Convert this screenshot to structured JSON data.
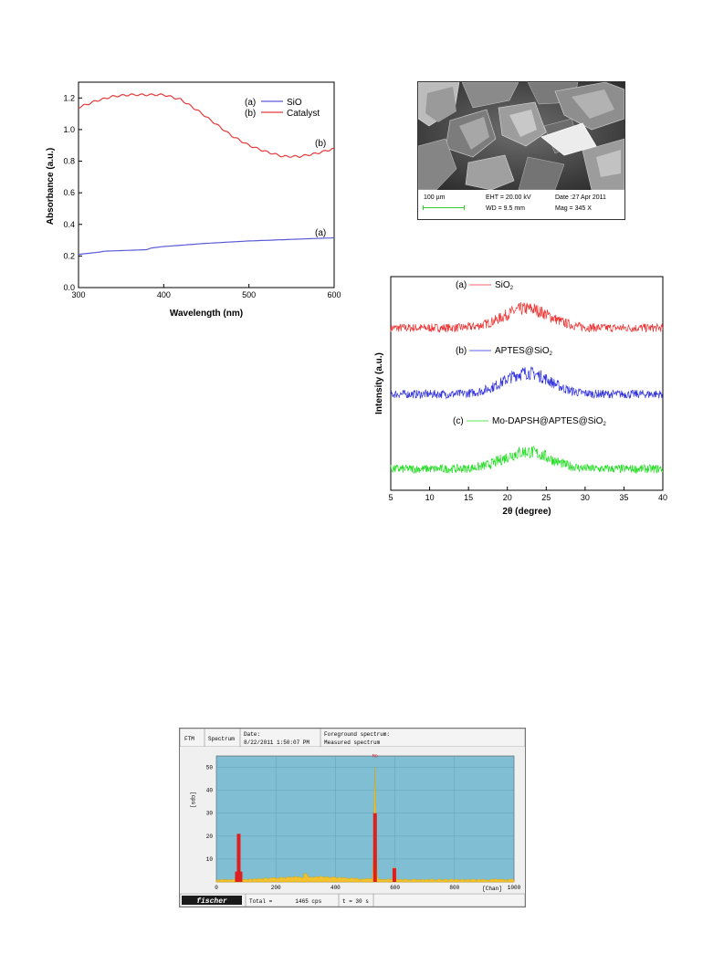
{
  "uv_chart": {
    "type": "line",
    "xlabel": "Wavelength (nm)",
    "ylabel": "Absorbance (a.u.)",
    "xlim": [
      300,
      600
    ],
    "ylim": [
      0,
      1.3
    ],
    "xticks": [
      "300",
      "400",
      "500",
      "600"
    ],
    "yticks": [
      "0.0",
      "0.2",
      "0.4",
      "0.6",
      "0.8",
      "1.0",
      "1.2"
    ],
    "legend_position": "top-right",
    "series": [
      {
        "legend_tag": "(a)",
        "name": "SiO",
        "curve_tag": "(a)",
        "color": "#5a5ad6",
        "x": [
          300,
          325,
          330,
          380,
          385,
          400,
          450,
          500,
          550,
          600
        ],
        "y": [
          0.21,
          0.225,
          0.23,
          0.24,
          0.25,
          0.26,
          0.28,
          0.295,
          0.305,
          0.315
        ]
      },
      {
        "legend_tag": "(b)",
        "name": "Catalyst",
        "curve_tag": "(b)",
        "color": "#e33b3b",
        "x": [
          300,
          320,
          340,
          360,
          380,
          400,
          420,
          440,
          460,
          480,
          500,
          520,
          540,
          560,
          580,
          600
        ],
        "y": [
          1.14,
          1.18,
          1.21,
          1.22,
          1.22,
          1.22,
          1.19,
          1.12,
          1.04,
          0.96,
          0.9,
          0.86,
          0.83,
          0.83,
          0.85,
          0.88
        ]
      }
    ]
  },
  "sem_image": {
    "scale_bar": "100 µm",
    "eht": "EHT = 20.00 kV",
    "wd": "WD = 9.5 mm",
    "date": "Date :27 Apr 2011",
    "mag": "Mag =   345 X",
    "scale_bar_color": "#33cc33"
  },
  "xrd_chart": {
    "type": "line",
    "xlabel": "2θ (degree)",
    "ylabel": "Intensity (a.u.)",
    "xlim": [
      5,
      40
    ],
    "xticks": [
      "5",
      "10",
      "15",
      "20",
      "25",
      "30",
      "35",
      "40"
    ],
    "peak_center": 22.5,
    "series": [
      {
        "tag": "(a)",
        "name": "SiO",
        "sub": "2",
        "color": "#ee3333",
        "baseline": 0.76,
        "peak_height": 0.09,
        "noise": 0.02
      },
      {
        "tag": "(b)",
        "name": "APTES@SiO",
        "sub": "2",
        "color": "#3333dd",
        "baseline": 0.45,
        "peak_height": 0.1,
        "noise": 0.02
      },
      {
        "tag": "(c)",
        "name": "Mo-DAPSH@APTES@SiO",
        "sub": "2",
        "color": "#22dd22",
        "baseline": 0.1,
        "peak_height": 0.08,
        "noise": 0.02
      }
    ]
  },
  "edx_chart": {
    "type": "bar",
    "header": {
      "col1": "FTM",
      "col2": "Spectrum",
      "col3_line1": "Date:",
      "col3_line2": "8/22/2011 1:50:07 PM",
      "col4_line1": "Foreground spectrum:",
      "col4_line2": "Measured spectrum"
    },
    "ylabel": "[cps]",
    "xlabel": "[Chan]",
    "xlim": [
      0,
      1000
    ],
    "ylim": [
      0,
      55
    ],
    "xticks": [
      "0",
      "200",
      "400",
      "600",
      "800",
      "1000"
    ],
    "yticks": [
      "10",
      "20",
      "30",
      "40",
      "50"
    ],
    "peak_label": "Mo",
    "peaks": [
      {
        "x": 75,
        "y": 21
      },
      {
        "x": 533,
        "y": 30
      },
      {
        "x": 598,
        "y": 6
      }
    ],
    "background_color": "#80bfd3",
    "footer": {
      "logo": "fischer",
      "total": "Total =       1465 cps",
      "time": "t = 30 s"
    }
  }
}
